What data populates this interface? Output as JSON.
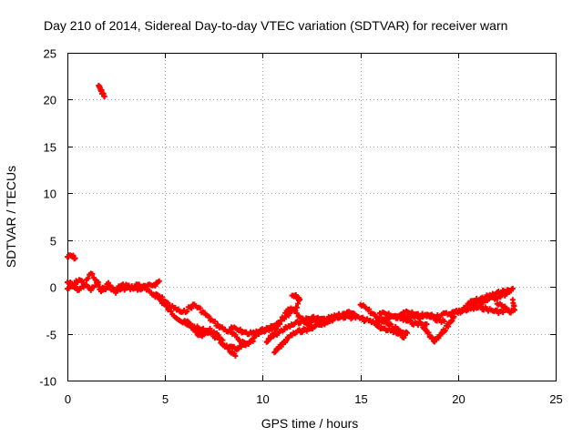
{
  "chart_data": {
    "type": "scatter",
    "title": "Day 210 of 2014, Sidereal Day-to-day VTEC variation (SDTVAR) for receiver warn",
    "xlabel": "GPS time / hours",
    "ylabel": "SDTVAR / TECUs",
    "xlim": [
      0,
      25
    ],
    "ylim": [
      -10,
      25
    ],
    "xticks": [
      0,
      5,
      10,
      15,
      20,
      25
    ],
    "yticks": [
      -10,
      -5,
      0,
      5,
      10,
      15,
      20,
      25
    ],
    "xtick_labels": [
      "0",
      "5",
      "10",
      "15",
      "20",
      "25"
    ],
    "ytick_labels": [
      "-10",
      "-5",
      "0",
      "5",
      "10",
      "15",
      "20",
      "25"
    ],
    "grid": true,
    "marker": "+",
    "series": [
      {
        "name": "SDTVAR",
        "color": "#ff0000",
        "segments": [
          [
            [
              0.0,
              3.2
            ],
            [
              0.2,
              3.3
            ],
            [
              0.4,
              3.1
            ]
          ],
          [
            [
              1.6,
              21.5
            ],
            [
              1.7,
              21.0
            ],
            [
              1.8,
              20.7
            ],
            [
              1.9,
              20.4
            ]
          ],
          [
            [
              0.0,
              0.5
            ],
            [
              0.3,
              0.2
            ],
            [
              0.6,
              0.8
            ],
            [
              0.9,
              0.3
            ],
            [
              1.2,
              1.5
            ],
            [
              1.5,
              0.5
            ],
            [
              1.8,
              -0.2
            ],
            [
              2.1,
              0.0
            ],
            [
              2.4,
              -0.5
            ],
            [
              2.7,
              -0.3
            ],
            [
              3.0,
              -0.2
            ],
            [
              3.3,
              0.0
            ],
            [
              3.6,
              -0.3
            ],
            [
              3.9,
              -0.1
            ],
            [
              4.2,
              -0.6
            ],
            [
              4.5,
              -0.9
            ],
            [
              4.8,
              -1.5
            ],
            [
              5.0,
              -2.0
            ],
            [
              5.3,
              -2.7
            ],
            [
              5.6,
              -3.2
            ],
            [
              5.9,
              -3.8
            ],
            [
              6.2,
              -4.2
            ],
            [
              6.5,
              -4.3
            ],
            [
              6.8,
              -4.5
            ],
            [
              7.1,
              -4.7
            ],
            [
              7.4,
              -5.0
            ],
            [
              7.7,
              -5.6
            ],
            [
              8.0,
              -6.2
            ],
            [
              8.3,
              -6.5
            ],
            [
              8.6,
              -6.6
            ],
            [
              8.9,
              -6.4
            ],
            [
              9.2,
              -6.2
            ],
            [
              9.5,
              -5.7
            ],
            [
              9.8,
              -5.0
            ],
            [
              10.1,
              -4.7
            ],
            [
              10.4,
              -4.5
            ],
            [
              10.7,
              -4.4
            ],
            [
              11.0,
              -3.4
            ],
            [
              11.3,
              -2.5
            ],
            [
              11.6,
              -2.4
            ],
            [
              11.9,
              -3.2
            ],
            [
              12.2,
              -3.8
            ],
            [
              12.5,
              -4.2
            ],
            [
              12.8,
              -4.0
            ],
            [
              13.1,
              -3.9
            ],
            [
              13.4,
              -3.6
            ],
            [
              13.7,
              -3.3
            ],
            [
              14.0,
              -3.2
            ],
            [
              14.3,
              -3.2
            ],
            [
              14.6,
              -3.2
            ],
            [
              14.9,
              -3.3
            ],
            [
              15.2,
              -3.5
            ],
            [
              15.5,
              -3.7
            ],
            [
              15.8,
              -3.8
            ],
            [
              16.1,
              -3.6
            ],
            [
              16.4,
              -3.4
            ],
            [
              16.7,
              -3.2
            ],
            [
              17.0,
              -3.1
            ],
            [
              17.3,
              -3.2
            ],
            [
              17.6,
              -3.2
            ],
            [
              17.9,
              -3.3
            ],
            [
              18.2,
              -3.2
            ],
            [
              18.5,
              -3.0
            ],
            [
              18.8,
              -3.1
            ],
            [
              19.1,
              -3.0
            ],
            [
              19.4,
              -2.9
            ],
            [
              19.7,
              -2.8
            ],
            [
              20.0,
              -2.6
            ],
            [
              20.3,
              -2.3
            ],
            [
              20.6,
              -2.0
            ],
            [
              20.9,
              -1.8
            ],
            [
              21.2,
              -1.6
            ],
            [
              21.5,
              -1.4
            ],
            [
              21.8,
              -1.2
            ],
            [
              22.1,
              -1.0
            ],
            [
              22.4,
              -0.8
            ],
            [
              22.7,
              -0.6
            ]
          ],
          [
            [
              0.0,
              -0.2
            ],
            [
              0.3,
              0.0
            ],
            [
              0.6,
              -0.3
            ],
            [
              0.9,
              0.2
            ],
            [
              1.2,
              -0.3
            ],
            [
              1.5,
              0.3
            ],
            [
              1.8,
              -0.5
            ],
            [
              2.1,
              0.4
            ],
            [
              2.4,
              -0.4
            ],
            [
              2.7,
              0.1
            ],
            [
              3.0,
              0.2
            ],
            [
              3.3,
              -0.2
            ],
            [
              3.6,
              0.3
            ],
            [
              3.9,
              0.0
            ],
            [
              4.2,
              0.1
            ],
            [
              4.5,
              0.3
            ],
            [
              4.7,
              0.6
            ]
          ],
          [
            [
              4.4,
              -0.8
            ],
            [
              4.7,
              -1.0
            ],
            [
              5.0,
              -1.5
            ],
            [
              5.3,
              -2.1
            ],
            [
              5.6,
              -2.4
            ],
            [
              5.9,
              -2.8
            ],
            [
              6.2,
              -2.3
            ],
            [
              6.5,
              -1.9
            ],
            [
              6.8,
              -2.4
            ],
            [
              7.1,
              -3.0
            ],
            [
              7.4,
              -3.6
            ],
            [
              7.7,
              -4.1
            ],
            [
              8.0,
              -4.5
            ],
            [
              8.3,
              -4.8
            ],
            [
              8.6,
              -5.3
            ],
            [
              8.9,
              -5.8
            ],
            [
              9.2,
              -6.1
            ],
            [
              9.5,
              -5.6
            ]
          ],
          [
            [
              6.0,
              -3.6
            ],
            [
              6.3,
              -4.0
            ],
            [
              6.5,
              -4.6
            ],
            [
              6.7,
              -5.1
            ],
            [
              6.9,
              -5.2
            ],
            [
              7.1,
              -4.9
            ],
            [
              7.3,
              -4.6
            ]
          ],
          [
            [
              7.5,
              -4.8
            ],
            [
              7.8,
              -5.4
            ],
            [
              8.1,
              -6.3
            ],
            [
              8.4,
              -7.0
            ],
            [
              8.6,
              -7.3
            ]
          ],
          [
            [
              8.4,
              -4.3
            ],
            [
              8.7,
              -4.6
            ],
            [
              9.0,
              -4.8
            ],
            [
              9.3,
              -5.0
            ],
            [
              9.6,
              -4.9
            ],
            [
              9.9,
              -4.7
            ],
            [
              10.2,
              -4.5
            ],
            [
              10.5,
              -4.2
            ],
            [
              10.8,
              -3.9
            ],
            [
              11.1,
              -3.4
            ],
            [
              11.4,
              -2.8
            ],
            [
              11.7,
              -2.3
            ],
            [
              11.9,
              -1.3
            ],
            [
              11.7,
              -1.0
            ],
            [
              11.5,
              -1.1
            ]
          ],
          [
            [
              10.3,
              -5.6
            ],
            [
              10.5,
              -5.2
            ],
            [
              10.8,
              -4.9
            ],
            [
              11.1,
              -4.5
            ],
            [
              11.4,
              -4.2
            ],
            [
              11.7,
              -3.9
            ],
            [
              12.0,
              -3.6
            ],
            [
              12.3,
              -3.4
            ],
            [
              12.6,
              -3.3
            ],
            [
              12.9,
              -3.4
            ],
            [
              13.2,
              -3.6
            ],
            [
              13.5,
              -3.5
            ],
            [
              13.8,
              -3.2
            ],
            [
              14.1,
              -3.0
            ],
            [
              14.4,
              -2.8
            ],
            [
              14.7,
              -2.7
            ]
          ],
          [
            [
              10.2,
              -5.9
            ],
            [
              10.4,
              -5.5
            ],
            [
              10.6,
              -5.0
            ]
          ],
          [
            [
              10.6,
              -7.0
            ],
            [
              10.8,
              -6.6
            ],
            [
              11.0,
              -6.1
            ],
            [
              11.2,
              -5.7
            ],
            [
              11.5,
              -5.1
            ],
            [
              11.8,
              -4.8
            ],
            [
              12.1,
              -4.6
            ],
            [
              12.4,
              -4.5
            ],
            [
              12.7,
              -4.3
            ]
          ],
          [
            [
              12.4,
              -3.8
            ],
            [
              12.7,
              -3.6
            ],
            [
              13.0,
              -3.5
            ],
            [
              13.3,
              -3.4
            ],
            [
              13.6,
              -3.2
            ],
            [
              13.9,
              -3.0
            ]
          ],
          [
            [
              15.0,
              -1.9
            ],
            [
              15.3,
              -2.3
            ],
            [
              15.6,
              -2.8
            ],
            [
              15.9,
              -3.3
            ],
            [
              16.2,
              -3.7
            ],
            [
              16.5,
              -4.1
            ],
            [
              16.8,
              -4.4
            ],
            [
              17.0,
              -4.7
            ],
            [
              17.2,
              -5.0
            ],
            [
              17.4,
              -4.9
            ]
          ],
          [
            [
              15.5,
              -3.6
            ],
            [
              15.8,
              -4.1
            ],
            [
              16.1,
              -4.4
            ],
            [
              16.4,
              -4.6
            ],
            [
              16.7,
              -4.8
            ],
            [
              17.0,
              -5.1
            ],
            [
              17.3,
              -5.3
            ]
          ],
          [
            [
              16.0,
              -2.8
            ],
            [
              16.3,
              -2.9
            ],
            [
              16.6,
              -3.1
            ],
            [
              16.9,
              -3.3
            ],
            [
              17.2,
              -3.5
            ],
            [
              17.5,
              -3.7
            ],
            [
              17.8,
              -3.9
            ],
            [
              18.1,
              -3.9
            ],
            [
              18.4,
              -4.1
            ]
          ],
          [
            [
              17.2,
              -2.7
            ],
            [
              17.5,
              -2.8
            ],
            [
              17.8,
              -2.9
            ],
            [
              18.1,
              -3.0
            ],
            [
              18.4,
              -3.1
            ],
            [
              18.7,
              -3.3
            ],
            [
              19.0,
              -3.5
            ],
            [
              19.3,
              -3.7
            ]
          ],
          [
            [
              18.2,
              -4.3
            ],
            [
              18.4,
              -4.8
            ],
            [
              18.6,
              -5.3
            ],
            [
              18.8,
              -5.8
            ],
            [
              19.0,
              -5.4
            ],
            [
              19.2,
              -4.9
            ],
            [
              19.4,
              -4.3
            ],
            [
              19.6,
              -3.8
            ],
            [
              19.8,
              -3.3
            ]
          ],
          [
            [
              19.6,
              -2.9
            ],
            [
              19.9,
              -2.7
            ],
            [
              20.2,
              -2.6
            ],
            [
              20.5,
              -2.4
            ],
            [
              20.8,
              -2.3
            ],
            [
              21.1,
              -2.2
            ],
            [
              21.4,
              -2.3
            ],
            [
              21.7,
              -2.5
            ],
            [
              22.0,
              -2.6
            ],
            [
              22.3,
              -2.7
            ]
          ],
          [
            [
              20.5,
              -1.8
            ],
            [
              20.8,
              -1.5
            ],
            [
              21.1,
              -1.3
            ],
            [
              21.4,
              -1.1
            ],
            [
              21.7,
              -0.9
            ],
            [
              22.0,
              -0.7
            ],
            [
              22.3,
              -0.5
            ],
            [
              22.6,
              -0.4
            ],
            [
              22.8,
              -0.3
            ]
          ],
          [
            [
              22.0,
              -1.8
            ],
            [
              22.3,
              -2.1
            ],
            [
              22.5,
              -2.4
            ],
            [
              22.7,
              -2.7
            ],
            [
              22.9,
              -2.4
            ],
            [
              22.8,
              -1.5
            ]
          ]
        ]
      }
    ]
  }
}
